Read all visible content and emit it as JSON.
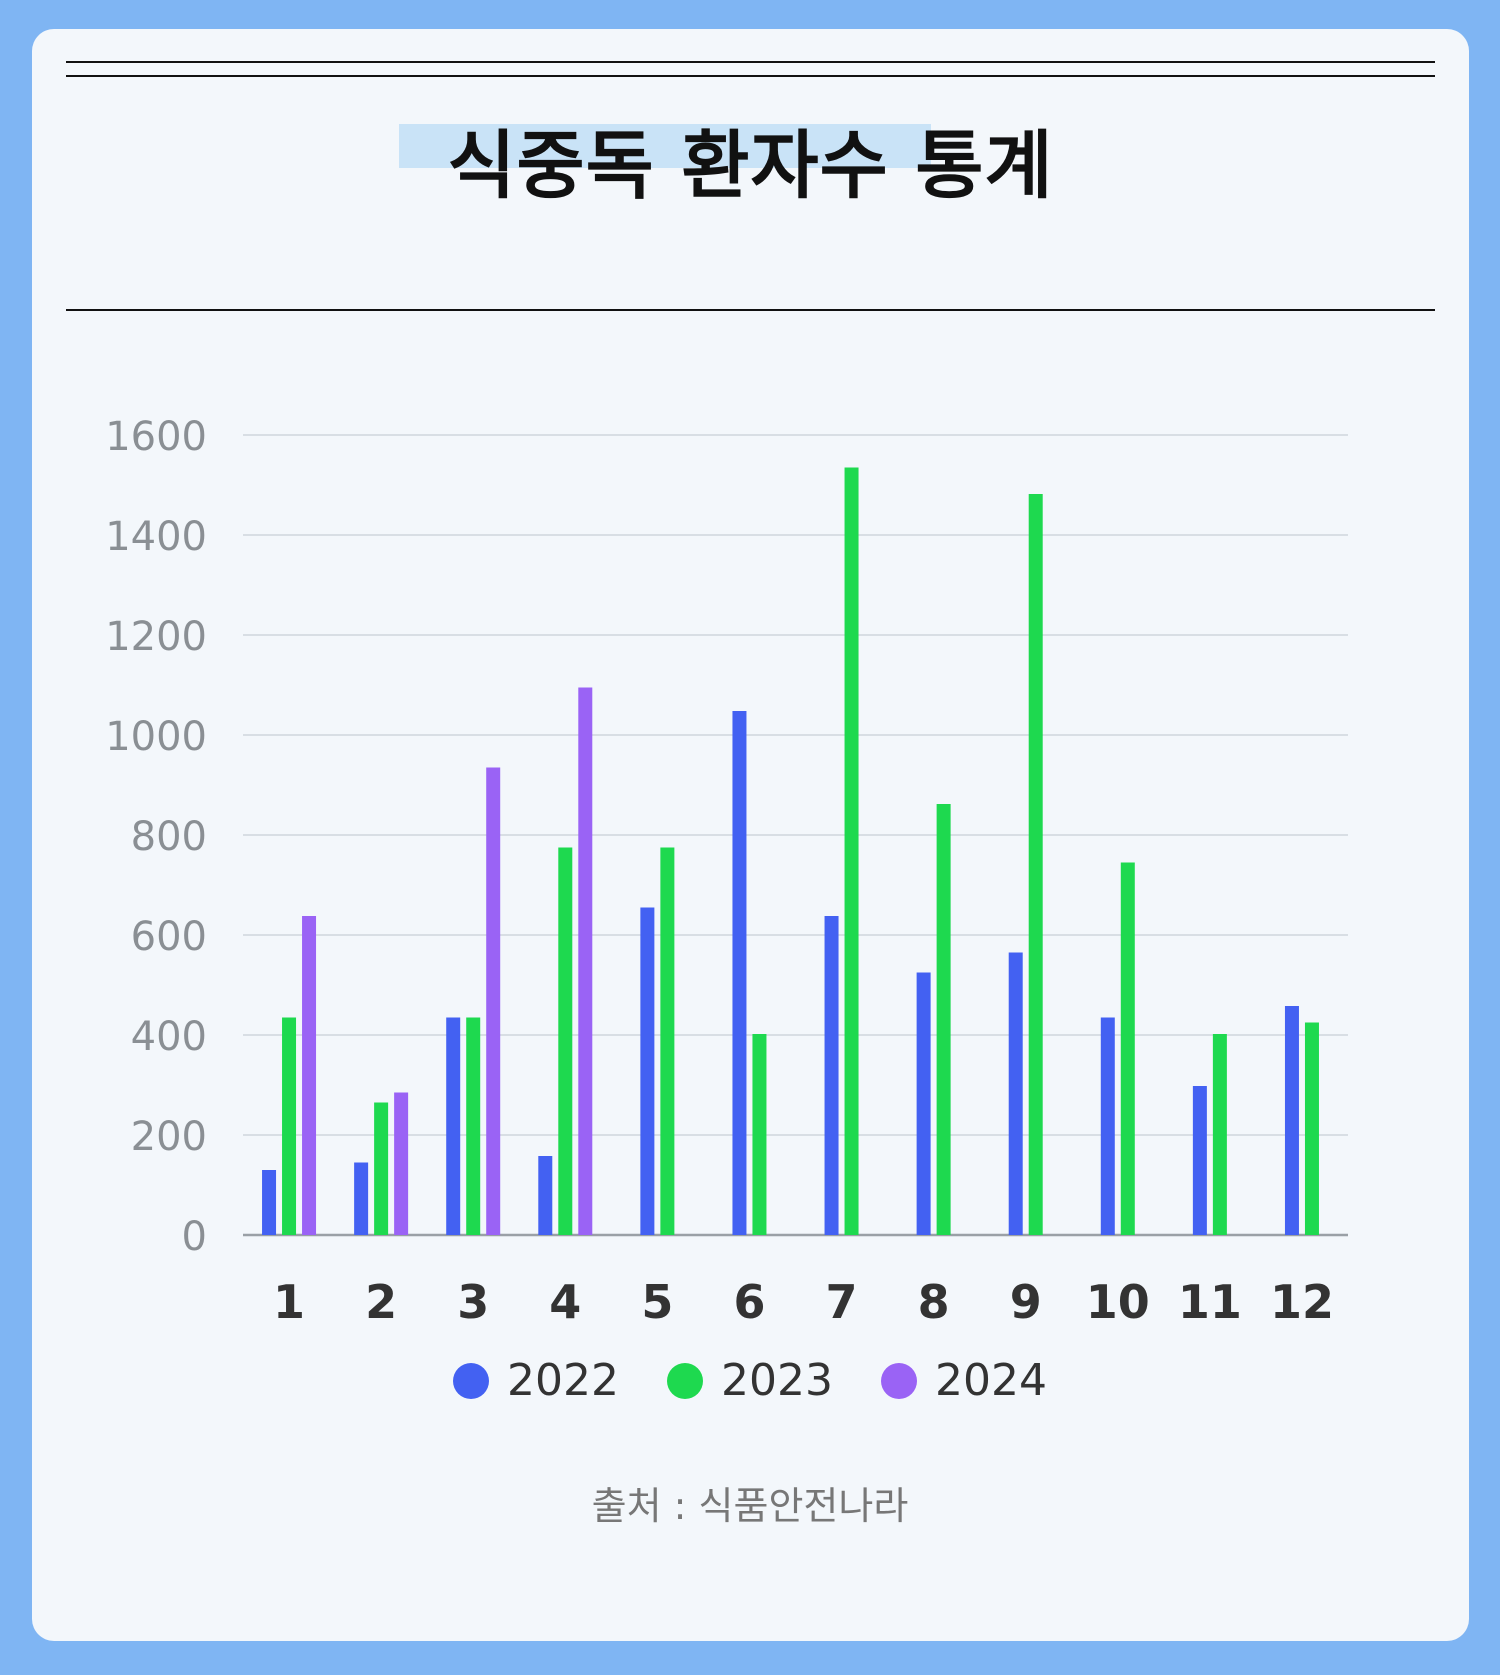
{
  "title": "식중독 환자수 통계",
  "source": "출처 : 식품안전나라",
  "colors": {
    "page_background": "#7fb5f3",
    "card_background": "#f3f7fb",
    "title_highlight": "#c9e3f7"
  },
  "chart_data": {
    "type": "bar",
    "title": "식중독 환자수 통계",
    "xlabel": "",
    "ylabel": "",
    "ylim": [
      0,
      1600
    ],
    "yticks": [
      0,
      200,
      400,
      600,
      800,
      1000,
      1200,
      1400,
      1600
    ],
    "grid": true,
    "legend_position": "bottom",
    "categories": [
      "1",
      "2",
      "3",
      "4",
      "5",
      "6",
      "7",
      "8",
      "9",
      "10",
      "11",
      "12"
    ],
    "series": [
      {
        "name": "2022",
        "color": "#4361f2",
        "values": [
          130,
          145,
          435,
          158,
          655,
          1048,
          638,
          525,
          565,
          435,
          298,
          458
        ]
      },
      {
        "name": "2023",
        "color": "#1ed94f",
        "values": [
          435,
          265,
          435,
          775,
          775,
          402,
          1535,
          862,
          1482,
          745,
          402,
          425
        ]
      },
      {
        "name": "2024",
        "color": "#9a63f5",
        "values": [
          638,
          285,
          935,
          1095,
          null,
          null,
          null,
          null,
          null,
          null,
          null,
          null
        ]
      }
    ]
  }
}
